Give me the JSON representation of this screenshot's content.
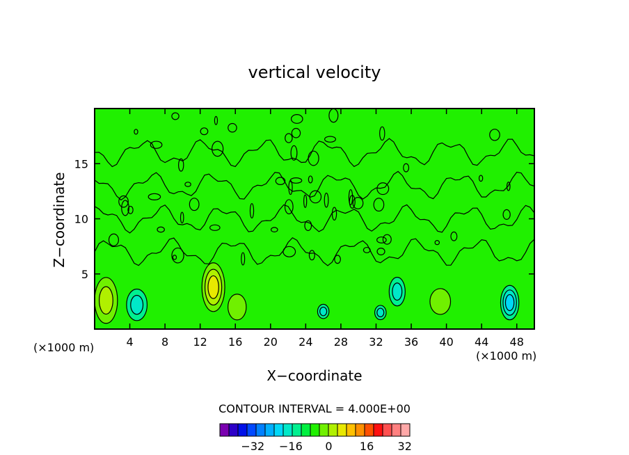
{
  "chart_data": {
    "type": "heatmap",
    "title": "vertical velocity",
    "xlabel": "X−coordinate",
    "ylabel": "Z−coordinate",
    "x_unit_left": "(×1000 m)",
    "x_unit_right": "(×1000 m)",
    "xlim": [
      0,
      50
    ],
    "ylim": [
      0,
      20
    ],
    "x_ticks": [
      4,
      8,
      12,
      16,
      20,
      24,
      28,
      32,
      36,
      40,
      44,
      48
    ],
    "x_tick_labels": [
      "4",
      "8",
      "12",
      "16",
      "20",
      "24",
      "28",
      "32",
      "36",
      "40",
      "44",
      "48"
    ],
    "y_ticks": [
      5,
      10,
      15
    ],
    "y_tick_labels": [
      "5",
      "10",
      "15"
    ],
    "background_level": 2,
    "features": [
      {
        "x": 1.3,
        "z": 2.6,
        "sx": 1.0,
        "sz": 1.6,
        "amp": 10
      },
      {
        "x": 13.5,
        "z": 3.8,
        "sx": 1.0,
        "sz": 1.7,
        "amp": 12
      },
      {
        "x": 16.2,
        "z": 2.0,
        "sx": 0.8,
        "sz": 0.9,
        "amp": 4
      },
      {
        "x": 39.3,
        "z": 2.5,
        "sx": 0.9,
        "sz": 0.9,
        "amp": 6
      },
      {
        "x": 4.8,
        "z": 2.2,
        "sx": 0.9,
        "sz": 1.1,
        "amp": -6
      },
      {
        "x": 34.4,
        "z": 3.4,
        "sx": 0.7,
        "sz": 1.0,
        "amp": -5
      },
      {
        "x": 47.2,
        "z": 2.4,
        "sx": 0.8,
        "sz": 1.2,
        "amp": -8
      },
      {
        "x": 26.0,
        "z": 1.6,
        "sx": 0.5,
        "sz": 0.5,
        "amp": -4
      },
      {
        "x": 32.5,
        "z": 1.5,
        "sx": 0.5,
        "sz": 0.5,
        "amp": -4
      },
      {
        "x": 31.5,
        "z": 4.3,
        "sx": 1.0,
        "sz": 0.9,
        "amp": 3
      }
    ],
    "contour_interval_text": "CONTOUR INTERVAL = 4.000E+00",
    "colorbar": {
      "colors": [
        "#7a00b0",
        "#2d00c8",
        "#0010e8",
        "#0048ff",
        "#0080ff",
        "#00b0ff",
        "#00d8f8",
        "#00e8c8",
        "#00f090",
        "#00f040",
        "#20f000",
        "#70f000",
        "#b0f000",
        "#e8e800",
        "#ffc000",
        "#ff9000",
        "#ff5000",
        "#ff1010",
        "#ff5050",
        "#ff8080",
        "#ffa8a8"
      ],
      "tick_labels": [
        "−32",
        "−16",
        "0",
        "16",
        "32"
      ],
      "tick_positions": [
        1.5,
        4.5,
        7.5,
        10.5,
        13.5
      ]
    },
    "level_colors": {
      "-8": "#00d8f8",
      "-4": "#00e8c8",
      "0": "#00f090",
      "2": "#20f000",
      "4": "#70f000",
      "8": "#b0f000",
      "12": "#e8e800"
    }
  }
}
